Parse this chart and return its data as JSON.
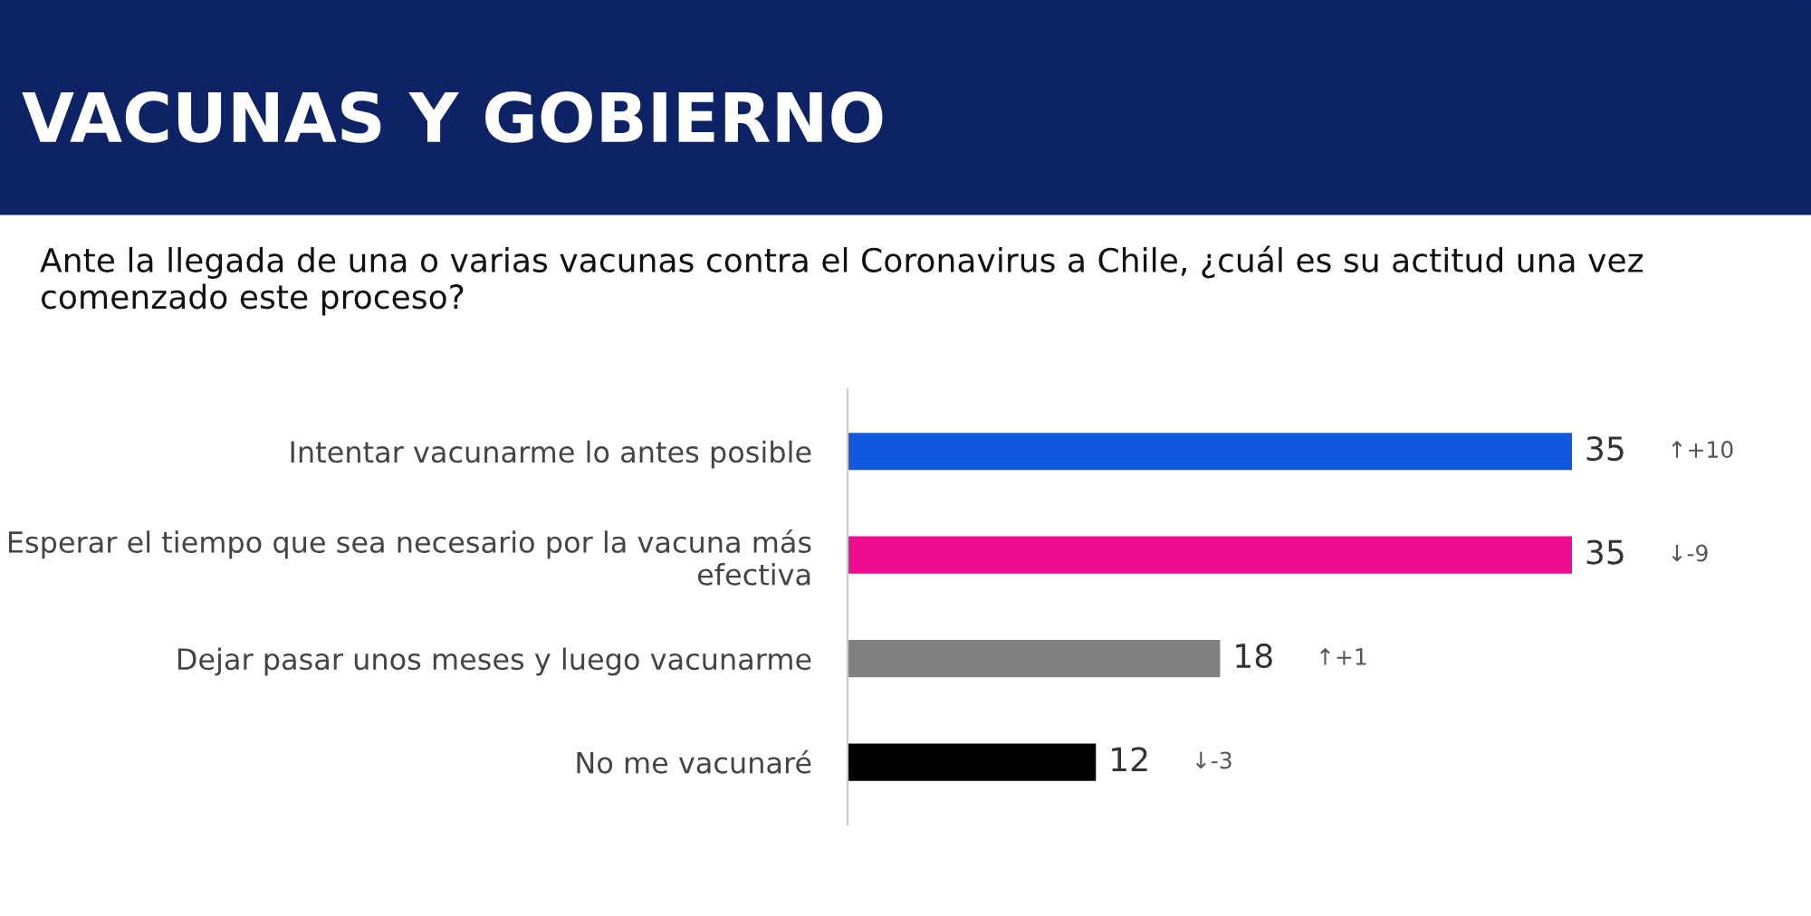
{
  "chart_data": {
    "type": "bar",
    "orientation": "horizontal",
    "title": "VACUNAS Y GOBIERNO",
    "subtitle": "Ante la llegada de una o varias vacunas contra el Coronavirus a Chile, ¿cuál es su actitud una vez comenzado este proceso?",
    "categories": [
      "Intentar vacunarme lo antes posible",
      "Esperar el tiempo que sea necesario por la vacuna más efectiva",
      "Dejar pasar unos meses y luego vacunarme",
      "No me vacunaré"
    ],
    "values": [
      35,
      35,
      18,
      12
    ],
    "colors": [
      "#1259e0",
      "#ec0c8f",
      "#808080",
      "#000000"
    ],
    "data_labels": true,
    "annotations": [
      "↑+10",
      "↓-9",
      "↑+1",
      "↓-3"
    ],
    "grid": false,
    "legend": false
  }
}
